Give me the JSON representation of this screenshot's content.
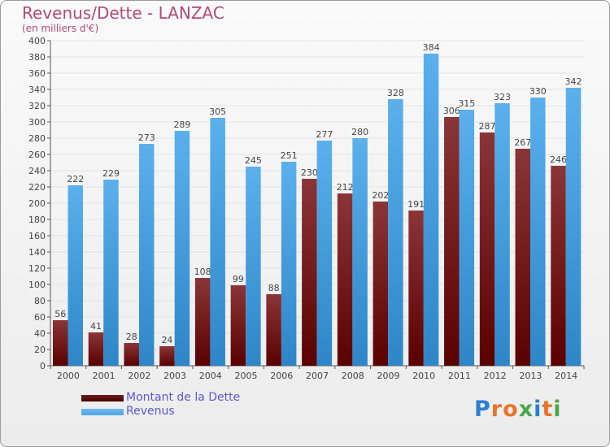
{
  "title": "Revenus/Dette - LANZAC",
  "subtitle": "(en milliers d'€)",
  "colors": {
    "title": "#b04a7a",
    "dette": "#6e1a1c",
    "revenus": "#4da6e8",
    "axis_text": "#444444",
    "grid": "#e4e4e4",
    "legend_text": "#5a5ad6"
  },
  "legend": {
    "items": [
      {
        "label": "Montant de la Dette",
        "color": "#6e1a1c"
      },
      {
        "label": "Revenus",
        "color": "#4da6e8"
      }
    ]
  },
  "logo": {
    "text": "Proxiti"
  },
  "chart_data": {
    "type": "bar",
    "title": "Revenus/Dette - LANZAC",
    "subtitle": "(en milliers d'€)",
    "categories": [
      "2000",
      "2001",
      "2002",
      "2003",
      "2004",
      "2005",
      "2006",
      "2007",
      "2008",
      "2009",
      "2010",
      "2011",
      "2012",
      "2013",
      "2014"
    ],
    "series": [
      {
        "name": "Montant de la Dette",
        "color": "#6e1a1c",
        "values": [
          56,
          41,
          28,
          24,
          108,
          99,
          88,
          230,
          212,
          202,
          191,
          306,
          287,
          267,
          246
        ]
      },
      {
        "name": "Revenus",
        "color": "#4da6e8",
        "values": [
          222,
          229,
          273,
          289,
          305,
          245,
          251,
          277,
          280,
          328,
          384,
          315,
          323,
          330,
          342
        ]
      }
    ],
    "ylim": [
      0,
      400
    ],
    "ytick_step": 20,
    "grid": true,
    "legend_position": "bottom-left"
  }
}
